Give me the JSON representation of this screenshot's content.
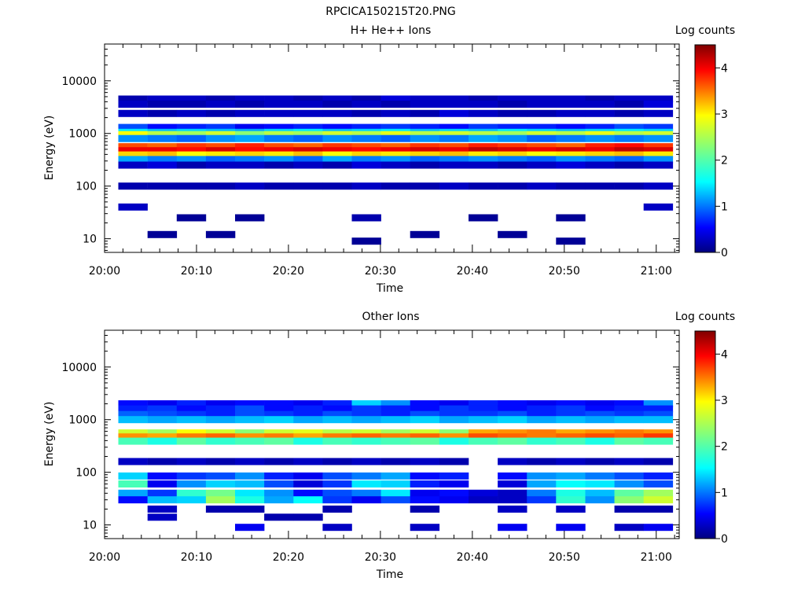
{
  "page": {
    "title": "RPCICA150215T20.PNG"
  },
  "colorbar": {
    "label": "Log counts",
    "ticks": [
      "0",
      "1",
      "2",
      "3",
      "4"
    ]
  },
  "chart_data": [
    {
      "type": "heatmap",
      "title": "H+ He++ Ions",
      "xlabel": "Time",
      "ylabel": "Energy (eV)",
      "y_scale": "log",
      "y_ticks": [
        "10",
        "100",
        "1000",
        "10000"
      ],
      "x_ticks": [
        "20:00",
        "20:10",
        "20:20",
        "20:30",
        "20:40",
        "20:50",
        "21:00"
      ],
      "value_range": [
        0,
        4.5
      ],
      "columns": 19,
      "bands": [
        {
          "e": 4500,
          "v": [
            0.2,
            0.3,
            0.3,
            0.2,
            0.3,
            0.3,
            0.2,
            0.3,
            0.2,
            0.4,
            0.3,
            0.3,
            0.2,
            0.3,
            0.3,
            0.3,
            0.2,
            0.3,
            0.3
          ]
        },
        {
          "e": 3600,
          "v": [
            0.3,
            0.2,
            0.2,
            0.3,
            0.2,
            0.3,
            0.3,
            0.2,
            0.3,
            0.2,
            0.3,
            0.3,
            0.3,
            0.2,
            0.3,
            0.3,
            0.3,
            0.2,
            0.4
          ]
        },
        {
          "e": 2400,
          "v": [
            0.3,
            0.2,
            0.3,
            0.2,
            0.3,
            0.3,
            0.3,
            0.3,
            0.2,
            0.3,
            0.2,
            0.4,
            0.3,
            0.2,
            0.2,
            0.3,
            0.3,
            0.2,
            0.3
          ]
        },
        {
          "e": 1300,
          "v": [
            0.9,
            0.6,
            0.7,
            0.8,
            0.5,
            0.6,
            0.7,
            0.6,
            0.7,
            0.8,
            0.7,
            0.6,
            0.8,
            0.7,
            0.7,
            0.6,
            0.7,
            0.9,
            0.8
          ]
        },
        {
          "e": 1050,
          "v": [
            1.6,
            1.4,
            1.5,
            1.4,
            1.3,
            1.5,
            1.6,
            1.4,
            1.5,
            1.6,
            1.4,
            1.5,
            1.4,
            1.6,
            1.5,
            1.4,
            1.5,
            1.6,
            1.5
          ]
        },
        {
          "e": 950,
          "v": [
            2.8,
            2.5,
            2.4,
            2.6,
            2.3,
            2.5,
            2.4,
            2.6,
            2.5,
            2.7,
            2.5,
            2.6,
            2.5,
            2.4,
            2.6,
            2.5,
            2.7,
            2.5,
            2.6
          ]
        },
        {
          "e": 800,
          "v": [
            1.2,
            1.1,
            1.0,
            1.2,
            1.3,
            1.1,
            1.0,
            1.2,
            1.1,
            1.0,
            1.2,
            1.1,
            1.3,
            1.2,
            1.0,
            1.1,
            1.2,
            1.1,
            1.2
          ]
        },
        {
          "e": 560,
          "v": [
            3.6,
            3.5,
            3.7,
            3.6,
            3.8,
            3.6,
            3.5,
            3.7,
            3.6,
            3.5,
            3.7,
            3.6,
            3.8,
            3.7,
            3.6,
            3.5,
            3.8,
            3.9,
            3.7
          ]
        },
        {
          "e": 470,
          "v": [
            4.0,
            4.0,
            3.9,
            4.1,
            3.9,
            4.0,
            4.1,
            4.0,
            3.9,
            4.0,
            4.1,
            4.0,
            4.2,
            4.1,
            4.0,
            4.1,
            4.0,
            4.2,
            4.1
          ]
        },
        {
          "e": 390,
          "v": [
            3.0,
            3.1,
            2.8,
            2.9,
            3.0,
            2.9,
            3.1,
            2.8,
            3.0,
            2.9,
            3.0,
            3.1,
            2.9,
            3.0,
            2.8,
            2.9,
            3.0,
            3.1,
            2.9
          ]
        },
        {
          "e": 320,
          "v": [
            1.3,
            1.1,
            1.2,
            1.0,
            1.1,
            1.2,
            1.0,
            1.3,
            1.1,
            1.2,
            1.0,
            1.1,
            1.2,
            1.1,
            1.0,
            1.2,
            1.1,
            1.0,
            1.2
          ]
        },
        {
          "e": 250,
          "v": [
            0.3,
            0.4,
            0.2,
            0.3,
            0.3,
            0.2,
            0.3,
            0.2,
            0.4,
            0.3,
            0.2,
            0.3,
            0.3,
            0.2,
            0.3,
            0.4,
            0.3,
            0.2,
            0.3
          ]
        },
        {
          "e": 100,
          "v": [
            0.2,
            0.2,
            0.2,
            0.2,
            0.3,
            0.2,
            0.2,
            0.2,
            0.3,
            0.2,
            0.2,
            0.3,
            0.2,
            0.2,
            0.3,
            0.2,
            0.2,
            0.2,
            0.3
          ]
        },
        {
          "e": 40,
          "v": [
            0.3,
            0,
            0,
            0,
            0,
            0,
            0,
            0,
            0,
            0,
            0,
            0,
            0,
            0,
            0,
            0,
            0,
            0,
            0.3
          ]
        },
        {
          "e": 25,
          "v": [
            0,
            0,
            0.1,
            0,
            0.1,
            0,
            0,
            0,
            0.2,
            0,
            0,
            0,
            0.1,
            0,
            0,
            0.1,
            0,
            0,
            0
          ]
        },
        {
          "e": 12,
          "v": [
            0,
            0.1,
            0,
            0.1,
            0,
            0,
            0,
            0,
            0,
            0,
            0.1,
            0,
            0,
            0.1,
            0,
            0,
            0,
            0,
            0
          ]
        },
        {
          "e": 9,
          "v": [
            0,
            0,
            0,
            0,
            0,
            0,
            0,
            0,
            0.1,
            0,
            0,
            0,
            0,
            0,
            0,
            0.1,
            0,
            0,
            0
          ]
        }
      ]
    },
    {
      "type": "heatmap",
      "title": "Other Ions",
      "xlabel": "Time",
      "ylabel": "Energy (eV)",
      "y_scale": "log",
      "y_ticks": [
        "10",
        "100",
        "1000",
        "10000"
      ],
      "x_ticks": [
        "20:00",
        "20:10",
        "20:20",
        "20:30",
        "20:40",
        "20:50",
        "21:00"
      ],
      "value_range": [
        0,
        4.5
      ],
      "columns": 19,
      "bands": [
        {
          "e": 2000,
          "v": [
            0.6,
            0.5,
            0.7,
            0.5,
            0.6,
            0.6,
            0.5,
            0.7,
            1.5,
            1.2,
            0.6,
            0.5,
            0.7,
            0.6,
            0.5,
            0.6,
            0.5,
            0.6,
            1.2
          ]
        },
        {
          "e": 1600,
          "v": [
            0.7,
            0.8,
            0.6,
            0.7,
            0.9,
            0.6,
            0.7,
            0.6,
            0.8,
            0.7,
            0.6,
            0.8,
            0.7,
            0.6,
            0.7,
            0.8,
            0.6,
            0.7,
            0.7
          ]
        },
        {
          "e": 1250,
          "v": [
            1.0,
            0.9,
            0.8,
            0.7,
            0.9,
            0.8,
            0.7,
            0.9,
            0.8,
            0.7,
            0.9,
            0.8,
            0.8,
            0.9,
            0.7,
            0.8,
            0.9,
            0.8,
            0.9
          ]
        },
        {
          "e": 1000,
          "v": [
            1.4,
            1.3,
            1.4,
            1.3,
            1.4,
            1.5,
            1.3,
            1.4,
            1.3,
            1.4,
            1.5,
            1.3,
            1.4,
            1.5,
            1.3,
            1.4,
            1.3,
            1.4,
            1.4
          ]
        },
        {
          "e": 560,
          "v": [
            2.6,
            2.4,
            2.8,
            2.6,
            2.3,
            2.6,
            2.7,
            2.5,
            2.6,
            2.4,
            2.6,
            2.3,
            3.2,
            3.3,
            3.4,
            3.2,
            3.3,
            3.4,
            3.3
          ]
        },
        {
          "e": 470,
          "v": [
            3.3,
            3.2,
            3.4,
            3.5,
            3.3,
            3.4,
            3.2,
            3.4,
            3.5,
            3.4,
            3.5,
            3.3,
            3.6,
            3.5,
            3.4,
            3.5,
            3.6,
            3.5,
            3.7
          ]
        },
        {
          "e": 390,
          "v": [
            2.0,
            1.8,
            2.1,
            1.9,
            2.0,
            2.1,
            1.8,
            2.0,
            1.9,
            2.0,
            2.1,
            1.8,
            2.0,
            2.1,
            1.9,
            2.0,
            1.8,
            2.1,
            2.0
          ]
        },
        {
          "e": 160,
          "v": [
            0.3,
            0.2,
            0.3,
            0.2,
            0.3,
            0.2,
            0.3,
            0.2,
            0.3,
            0.2,
            0.3,
            0.2,
            0,
            0.3,
            0.2,
            0.3,
            0.2,
            0.3,
            0.2
          ]
        },
        {
          "e": 85,
          "v": [
            1.5,
            0.6,
            0.8,
            0.9,
            1.2,
            0.7,
            0.5,
            0.9,
            1.1,
            1.3,
            0.6,
            0.7,
            0,
            0.6,
            1.2,
            1.3,
            1.1,
            0.9,
            0.7
          ]
        },
        {
          "e": 60,
          "v": [
            2.0,
            0.5,
            1.2,
            1.5,
            1.4,
            0.9,
            0.4,
            0.8,
            1.6,
            1.5,
            0.7,
            0.5,
            0,
            0.4,
            1.3,
            1.7,
            1.6,
            1.2,
            0.9
          ]
        },
        {
          "e": 40,
          "v": [
            1.3,
            0.8,
            1.9,
            2.2,
            1.6,
            1.2,
            0.6,
            0.9,
            1.1,
            1.6,
            0.5,
            0.6,
            0.4,
            0.3,
            1.1,
            1.8,
            1.4,
            2.1,
            2.4
          ]
        },
        {
          "e": 30,
          "v": [
            0.6,
            1.4,
            1.5,
            2.4,
            1.8,
            1.3,
            1.7,
            0.8,
            0.5,
            0.9,
            0.6,
            0.5,
            0.3,
            0.3,
            0.8,
            1.9,
            1.2,
            2.3,
            2.6
          ]
        },
        {
          "e": 20,
          "v": [
            0,
            0.3,
            0,
            0.2,
            0.2,
            0,
            0,
            0.2,
            0,
            0,
            0.2,
            0,
            0,
            0.3,
            0,
            0.3,
            0,
            0.2,
            0.2
          ]
        },
        {
          "e": 14,
          "v": [
            0,
            0.3,
            0,
            0,
            0,
            0.2,
            0.2,
            0,
            0,
            0,
            0,
            0,
            0,
            0,
            0,
            0,
            0,
            0,
            0
          ]
        },
        {
          "e": 9,
          "v": [
            0,
            0,
            0,
            0,
            0.5,
            0,
            0,
            0.3,
            0,
            0,
            0.3,
            0,
            0,
            0.5,
            0,
            0.5,
            0,
            0.3,
            0.5
          ]
        }
      ]
    }
  ]
}
